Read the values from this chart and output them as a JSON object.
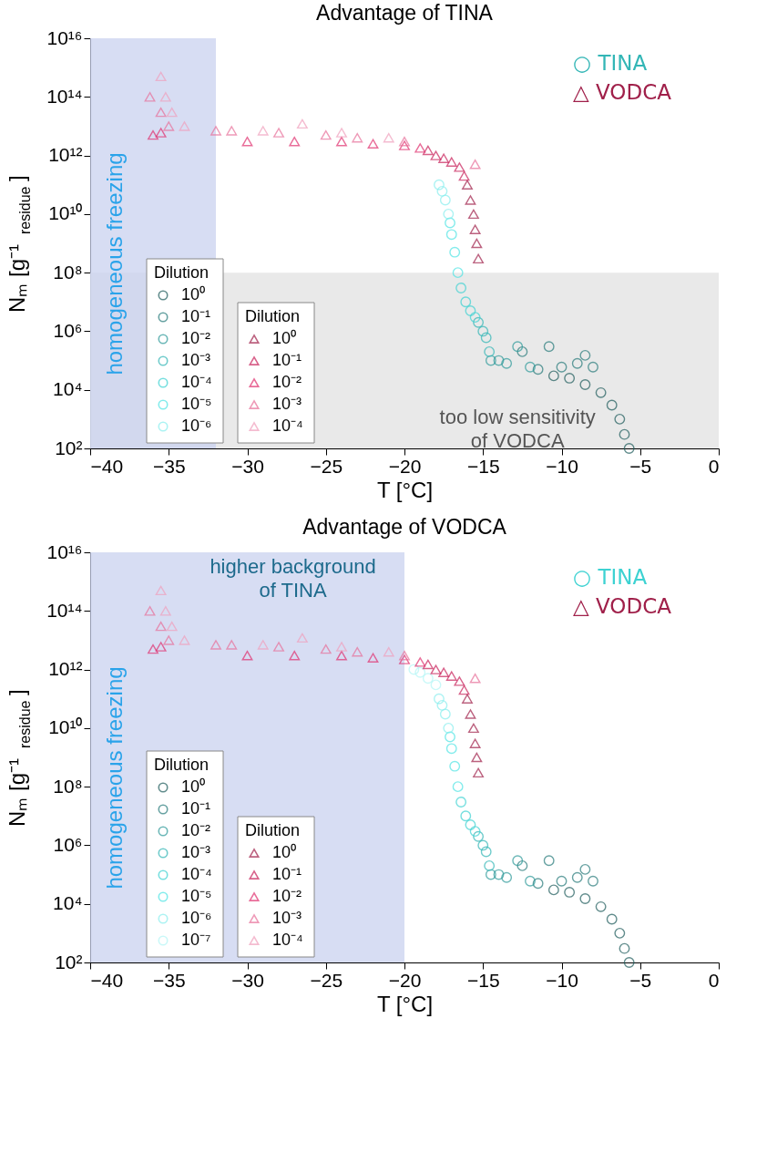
{
  "chart_data": [
    {
      "type": "scatter",
      "title": "Advantage of TINA",
      "xlabel": "T [°C]",
      "ylabel": "Nₘ [g⁻¹$_{residue}$]",
      "legend_title": "Dilution",
      "legend": "bottom left",
      "log": "y",
      "xlim": [
        -40,
        0
      ],
      "xticks": [
        -40,
        -35,
        -30,
        -25,
        -20,
        -15,
        -10,
        -5,
        0
      ],
      "ylim": [
        100,
        1e+16
      ],
      "yticks": [
        {
          "value": 100,
          "label": "10²"
        },
        {
          "value": 10000.0,
          "label": "10⁴"
        },
        {
          "value": 1000000.0,
          "label": "10⁶"
        },
        {
          "value": 100000000.0,
          "label": "10⁸"
        },
        {
          "value": 10000000000.0,
          "label": "10¹⁰"
        },
        {
          "value": 1000000000000.0,
          "label": "10¹²"
        },
        {
          "value": 100000000000000.0,
          "label": "10¹⁴"
        },
        {
          "value": 1e+16,
          "label": "10¹⁶"
        }
      ],
      "bands": [
        {
          "axis": "y",
          "from": 100,
          "to": 100000000.0,
          "label": "too low sensitivity of VODCA",
          "color": "#e4e4e4"
        },
        {
          "axis": "x",
          "from": -40,
          "to": -32,
          "label": "homogeneous freezing",
          "color": "#c9d1ef"
        }
      ],
      "annotations": [
        "○ TINA",
        "△ VODCA"
      ],
      "series": [
        {
          "name": "10⁰",
          "marker": "circle",
          "color": "#1f5c5c",
          "x": [
            -5.7,
            -6,
            -6.3,
            -6.8,
            -7.5,
            -8.5,
            -9.5,
            -10.5
          ],
          "values": [
            100,
            300,
            1000,
            3000,
            8000,
            15000,
            25000,
            30000
          ]
        },
        {
          "name": "10⁻¹",
          "marker": "circle",
          "color": "#287b7b",
          "x": [
            -8,
            -8.5,
            -9,
            -10,
            -10.8,
            -11.5,
            -12.5
          ],
          "values": [
            60000,
            150000,
            80000,
            60000,
            300000,
            50000,
            200000
          ]
        },
        {
          "name": "10⁻²",
          "marker": "circle",
          "color": "#2e9a9a",
          "x": [
            -12,
            -12.8,
            -13.5,
            -14,
            -14.5
          ],
          "values": [
            60000,
            300000,
            80000,
            100000,
            100000
          ]
        },
        {
          "name": "10⁻³",
          "marker": "circle",
          "color": "#33b6b6",
          "x": [
            -14.6,
            -14.8,
            -15,
            -15.3
          ],
          "values": [
            200000,
            600000,
            1000000,
            2000000
          ]
        },
        {
          "name": "10⁻⁴",
          "marker": "circle",
          "color": "#3dd2d2",
          "x": [
            -15.5,
            -15.8,
            -16.1,
            -16.4
          ],
          "values": [
            3000000,
            5000000,
            10000000,
            30000000
          ]
        },
        {
          "name": "10⁻⁵",
          "marker": "circle",
          "color": "#50e4e4",
          "x": [
            -16.6,
            -16.8,
            -17,
            -17.1
          ],
          "values": [
            100000000,
            500000000,
            2000000000,
            5000000000
          ]
        },
        {
          "name": "10⁻⁶",
          "marker": "circle",
          "color": "#8aeeee",
          "x": [
            -17.2,
            -17.4,
            -17.6,
            -17.8
          ],
          "values": [
            10000000000,
            30000000000,
            60000000000,
            100000000000
          ]
        },
        {
          "name": "10⁰",
          "marker": "triangle",
          "color": "#a0204a",
          "x": [
            -15.3,
            -15.4,
            -15.5,
            -15.6,
            -15.8,
            -16
          ],
          "values": [
            300000000,
            1000000000,
            3000000000,
            10000000000,
            30000000000,
            100000000000
          ]
        },
        {
          "name": "10⁻¹",
          "marker": "triangle",
          "color": "#c8205a",
          "x": [
            -16.2,
            -16.5,
            -17,
            -17.5,
            -18,
            -18.5
          ],
          "values": [
            200000000000,
            400000000000,
            600000000000,
            800000000000,
            1000000000000,
            1500000000000
          ]
        },
        {
          "name": "10⁻²",
          "marker": "triangle",
          "color": "#e0306f",
          "x": [
            -19,
            -20,
            -22,
            -24,
            -27,
            -30,
            -36,
            -35.5
          ],
          "values": [
            1800000000000.0,
            2200000000000.0,
            2500000000000.0,
            3000000000000.0,
            3000000000000.0,
            3000000000000.0,
            5000000000000.0,
            6000000000000.0
          ]
        },
        {
          "name": "10⁻³",
          "marker": "triangle",
          "color": "#e8709a",
          "x": [
            -15.5,
            -20,
            -23,
            -25,
            -28,
            -31,
            -32,
            -36.2,
            -35.5,
            -35
          ],
          "values": [
            500000000000.0,
            3000000000000.0,
            4000000000000.0,
            5000000000000.0,
            6000000000000.0,
            7000000000000.0,
            7000000000000.0,
            100000000000000.0,
            30000000000000.0,
            10000000000000.0
          ]
        },
        {
          "name": "10⁻⁴",
          "marker": "triangle",
          "color": "#f0a0bd",
          "x": [
            -21,
            -24,
            -26.5,
            -29,
            -35.5,
            -35.2,
            -34.8,
            -34
          ],
          "values": [
            4000000000000.0,
            6000000000000.0,
            12000000000000.0,
            7000000000000.0,
            500000000000000.0,
            100000000000000.0,
            30000000000000.0,
            10000000000000.0
          ]
        }
      ]
    },
    {
      "type": "scatter",
      "title": "Advantage of VODCA",
      "xlabel": "T [°C]",
      "ylabel": "Nₘ [g⁻¹$_{residue}$]",
      "legend_title": "Dilution",
      "legend": "bottom left",
      "log": "y",
      "xlim": [
        -40,
        0
      ],
      "xticks": [
        -40,
        -35,
        -30,
        -25,
        -20,
        -15,
        -10,
        -5,
        0
      ],
      "ylim": [
        100,
        1e+16
      ],
      "yticks": [
        {
          "value": 100,
          "label": "10²"
        },
        {
          "value": 10000.0,
          "label": "10⁴"
        },
        {
          "value": 1000000.0,
          "label": "10⁶"
        },
        {
          "value": 100000000.0,
          "label": "10⁸"
        },
        {
          "value": 10000000000.0,
          "label": "10¹⁰"
        },
        {
          "value": 1000000000000.0,
          "label": "10¹²"
        },
        {
          "value": 100000000000000.0,
          "label": "10¹⁴"
        },
        {
          "value": 1e+16,
          "label": "10¹⁶"
        }
      ],
      "bands": [
        {
          "axis": "x",
          "from": -40,
          "to": -20,
          "label": "homogeneous freezing",
          "color": "#c9d1ef"
        }
      ],
      "annotations": [
        "○ TINA",
        "△ VODCA",
        "higher background of TINA"
      ],
      "series": [
        {
          "name": "10⁰",
          "marker": "circle",
          "color": "#1f5c5c",
          "x": [
            -5.7,
            -6,
            -6.3,
            -6.8,
            -7.5,
            -8.5,
            -9.5,
            -10.5
          ],
          "values": [
            100,
            300,
            1000,
            3000,
            8000,
            15000,
            25000,
            30000
          ]
        },
        {
          "name": "10⁻¹",
          "marker": "circle",
          "color": "#287b7b",
          "x": [
            -8,
            -8.5,
            -9,
            -10,
            -10.8,
            -11.5,
            -12.5
          ],
          "values": [
            60000,
            150000,
            80000,
            60000,
            300000,
            50000,
            200000
          ]
        },
        {
          "name": "10⁻²",
          "marker": "circle",
          "color": "#2e9a9a",
          "x": [
            -12,
            -12.8,
            -13.5,
            -14,
            -14.5
          ],
          "values": [
            60000,
            300000,
            80000,
            100000,
            100000
          ]
        },
        {
          "name": "10⁻³",
          "marker": "circle",
          "color": "#33b6b6",
          "x": [
            -14.6,
            -14.8,
            -15,
            -15.3
          ],
          "values": [
            200000,
            600000,
            1000000,
            2000000
          ]
        },
        {
          "name": "10⁻⁴",
          "marker": "circle",
          "color": "#3dd2d2",
          "x": [
            -15.5,
            -15.8,
            -16.1,
            -16.4
          ],
          "values": [
            3000000,
            5000000,
            10000000,
            30000000
          ]
        },
        {
          "name": "10⁻⁵",
          "marker": "circle",
          "color": "#50e4e4",
          "x": [
            -16.6,
            -16.8,
            -17,
            -17.1
          ],
          "values": [
            100000000,
            500000000,
            2000000000,
            5000000000
          ]
        },
        {
          "name": "10⁻⁶",
          "marker": "circle",
          "color": "#8aeeee",
          "x": [
            -17.2,
            -17.4,
            -17.6,
            -17.8
          ],
          "values": [
            10000000000,
            30000000000,
            60000000000,
            100000000000
          ]
        },
        {
          "name": "10⁻⁷",
          "marker": "circle",
          "color": "#b5f6f6",
          "x": [
            -18,
            -18.5,
            -19,
            -19.4
          ],
          "values": [
            300000000000,
            500000000000,
            800000000000,
            1000000000000
          ]
        },
        {
          "name": "10⁰",
          "marker": "triangle",
          "color": "#a0204a",
          "x": [
            -15.3,
            -15.4,
            -15.5,
            -15.6,
            -15.8,
            -16
          ],
          "values": [
            300000000,
            1000000000,
            3000000000,
            10000000000,
            30000000000,
            100000000000
          ]
        },
        {
          "name": "10⁻¹",
          "marker": "triangle",
          "color": "#c8205a",
          "x": [
            -16.2,
            -16.5,
            -17,
            -17.5,
            -18,
            -18.5
          ],
          "values": [
            200000000000,
            400000000000,
            600000000000,
            800000000000,
            1000000000000,
            1500000000000
          ]
        },
        {
          "name": "10⁻²",
          "marker": "triangle",
          "color": "#e0306f",
          "x": [
            -19,
            -20,
            -22,
            -24,
            -27,
            -30,
            -36,
            -35.5
          ],
          "values": [
            1800000000000.0,
            2200000000000.0,
            2500000000000.0,
            3000000000000.0,
            3000000000000.0,
            3000000000000.0,
            5000000000000.0,
            6000000000000.0
          ]
        },
        {
          "name": "10⁻³",
          "marker": "triangle",
          "color": "#e8709a",
          "x": [
            -15.5,
            -20,
            -23,
            -25,
            -28,
            -31,
            -32,
            -36.2,
            -35.5,
            -35
          ],
          "values": [
            500000000000.0,
            3000000000000.0,
            4000000000000.0,
            5000000000000.0,
            6000000000000.0,
            7000000000000.0,
            7000000000000.0,
            100000000000000.0,
            30000000000000.0,
            10000000000000.0
          ]
        },
        {
          "name": "10⁻⁴",
          "marker": "triangle",
          "color": "#f0a0bd",
          "x": [
            -21,
            -24,
            -26.5,
            -29,
            -35.5,
            -35.2,
            -34.8,
            -34
          ],
          "values": [
            4000000000000.0,
            6000000000000.0,
            12000000000000.0,
            7000000000000.0,
            500000000000000.0,
            100000000000000.0,
            30000000000000.0,
            10000000000000.0
          ]
        }
      ]
    }
  ]
}
